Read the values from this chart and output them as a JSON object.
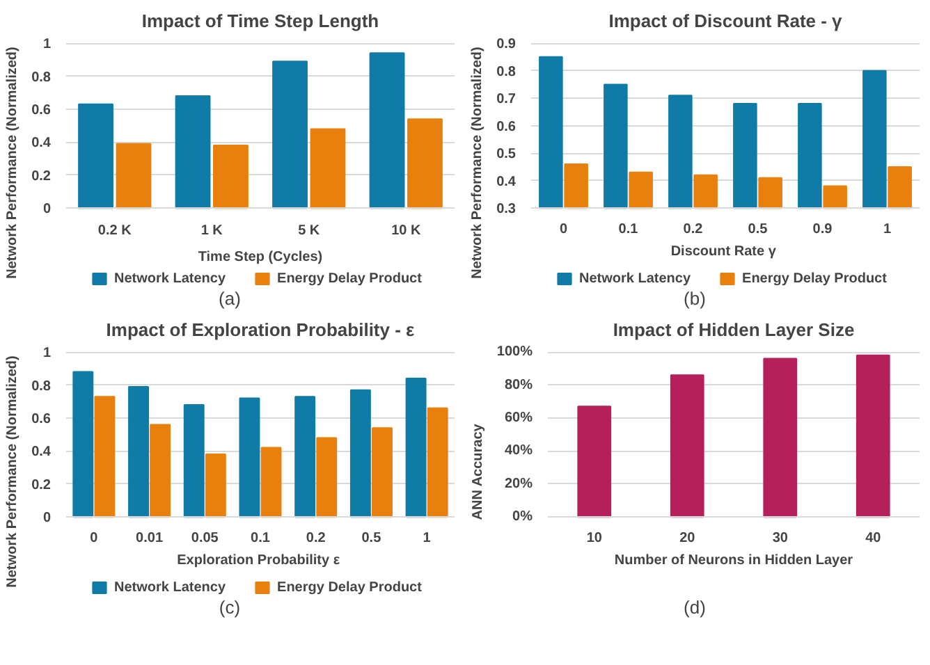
{
  "chart_data": [
    {
      "type": "bar",
      "title": "Impact of Time Step Length",
      "xlabel": "Time Step (Cycles)",
      "ylabel": "Network Performance (Normalized)",
      "categories": [
        "0.2 K",
        "1 K",
        "5 K",
        "10 K"
      ],
      "series": [
        {
          "name": "Network Latency",
          "color": "#0f7ba6",
          "values": [
            0.63,
            0.68,
            0.89,
            0.94
          ]
        },
        {
          "name": "Energy Delay Product",
          "color": "#e8800d",
          "values": [
            0.39,
            0.38,
            0.48,
            0.54
          ]
        }
      ],
      "ylim": [
        0,
        1
      ],
      "yticks": [
        0,
        0.2,
        0.4,
        0.6,
        0.8,
        1
      ],
      "grid": "y",
      "legend": "bottom",
      "annotations": [
        "(a)"
      ]
    },
    {
      "type": "bar",
      "title": "Impact of Discount Rate - γ",
      "xlabel": "Discount Rate  γ",
      "ylabel": "Network Performance (Normalized)",
      "categories": [
        "0",
        "0.1",
        "0.2",
        "0.5",
        "0.9",
        "1"
      ],
      "series": [
        {
          "name": "Network Latency",
          "color": "#0f7ba6",
          "values": [
            0.85,
            0.75,
            0.71,
            0.68,
            0.68,
            0.8
          ]
        },
        {
          "name": "Energy Delay Product",
          "color": "#e8800d",
          "values": [
            0.46,
            0.43,
            0.42,
            0.41,
            0.38,
            0.45
          ]
        }
      ],
      "ylim": [
        0.3,
        0.9
      ],
      "yticks": [
        0.3,
        0.4,
        0.5,
        0.6,
        0.7,
        0.8,
        0.9
      ],
      "grid": "y",
      "legend": "bottom",
      "annotations": [
        "(b)"
      ]
    },
    {
      "type": "bar",
      "title": "Impact of Exploration Probability - ε",
      "xlabel": "Exploration Probability  ε",
      "ylabel": "Network Performance (Normalized)",
      "categories": [
        "0",
        "0.01",
        "0.05",
        "0.1",
        "0.2",
        "0.5",
        "1"
      ],
      "series": [
        {
          "name": "Network Latency",
          "color": "#0f7ba6",
          "values": [
            0.88,
            0.79,
            0.68,
            0.72,
            0.73,
            0.77,
            0.84
          ]
        },
        {
          "name": "Energy Delay Product",
          "color": "#e8800d",
          "values": [
            0.73,
            0.56,
            0.38,
            0.42,
            0.48,
            0.54,
            0.66
          ]
        }
      ],
      "ylim": [
        0,
        1
      ],
      "yticks": [
        0,
        0.2,
        0.4,
        0.6,
        0.8,
        1
      ],
      "grid": "y",
      "legend": "bottom",
      "annotations": [
        "(c)"
      ]
    },
    {
      "type": "bar",
      "title": "Impact of Hidden Layer Size",
      "xlabel": "Number of Neurons in Hidden Layer",
      "ylabel": "ANN Accuracy",
      "categories": [
        "10",
        "20",
        "30",
        "40"
      ],
      "series": [
        {
          "color": "#b51f5a",
          "values": [
            67,
            86,
            96,
            98
          ]
        }
      ],
      "ylim": [
        0,
        100
      ],
      "yticks": [
        {
          "value": 0,
          "label": "0%"
        },
        {
          "value": 20,
          "label": "20%"
        },
        {
          "value": 40,
          "label": "40%"
        },
        {
          "value": 60,
          "label": "60%"
        },
        {
          "value": 80,
          "label": "80%"
        },
        {
          "value": 100,
          "label": "100%"
        }
      ],
      "grid": "y",
      "annotations": [
        "(d)"
      ]
    }
  ]
}
